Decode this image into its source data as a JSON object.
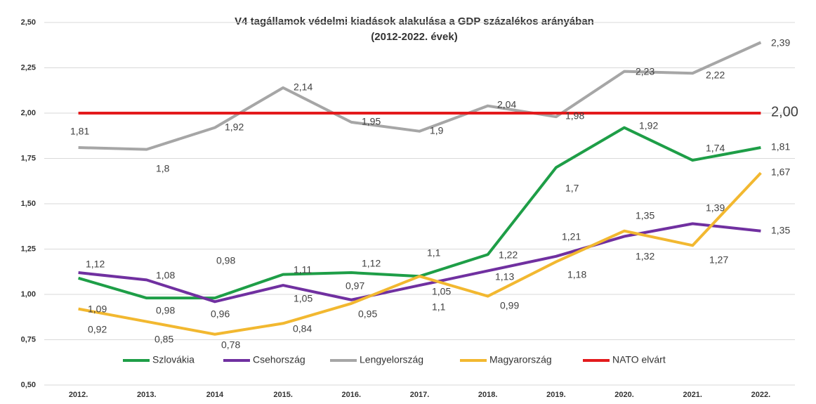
{
  "chart_data": {
    "type": "line",
    "title": "V4 tagállamok védelmi kiadások alakulása a GDP százalékos arányában",
    "subtitle": "(2012-2022. évek)",
    "categories": [
      "2012.",
      "2013.",
      "2014",
      "2015.",
      "2016.",
      "2017.",
      "2018.",
      "2019.",
      "2020.",
      "2021.",
      "2022."
    ],
    "ylim": [
      0.5,
      2.5
    ],
    "yticks": [
      {
        "value": 0.5,
        "label": "0,50"
      },
      {
        "value": 0.75,
        "label": "0,75"
      },
      {
        "value": 1,
        "label": "1,00"
      },
      {
        "value": 1.25,
        "label": "1,25"
      },
      {
        "value": 1.5,
        "label": "1,50"
      },
      {
        "value": 1.75,
        "label": "1,75"
      },
      {
        "value": 2,
        "label": "2,00"
      },
      {
        "value": 2.25,
        "label": "2,25"
      },
      {
        "value": 2.5,
        "label": "2,50"
      }
    ],
    "grid": true,
    "legend": "bottom",
    "series": [
      {
        "name": "Szlovákia",
        "color": "#1e9e47",
        "label_color": "#1e9e47",
        "values": [
          1.09,
          0.98,
          0.98,
          1.11,
          1.12,
          1.1,
          1.22,
          1.7,
          1.92,
          1.74,
          1.81
        ],
        "value_labels": [
          "1,09",
          "0,98",
          "0,98",
          "1,11",
          "1,12",
          "1,1",
          "1,22",
          "1,7",
          "1,92",
          "1,74",
          "1,81"
        ]
      },
      {
        "name": "Csehország",
        "color": "#7030a0",
        "label_color": "#7030a0",
        "values": [
          1.12,
          1.08,
          0.96,
          1.05,
          0.97,
          1.05,
          1.13,
          1.21,
          1.32,
          1.39,
          1.35
        ],
        "value_labels": [
          "1,12",
          "1,08",
          "0,96",
          "1,05",
          "0,97",
          "1,05",
          "1,13",
          "1,21",
          "1,32",
          "1,39",
          "1,35"
        ]
      },
      {
        "name": "Lengyelország",
        "color": "#a6a6a6",
        "label_color": "#404040",
        "values": [
          1.81,
          1.8,
          1.92,
          2.14,
          1.95,
          1.9,
          2.04,
          1.98,
          2.23,
          2.22,
          2.39
        ],
        "value_labels": [
          "1,81",
          "1,8",
          "1,92",
          "2,14",
          "1,95",
          "1,9",
          "2,04",
          "1,98",
          "2,23",
          "2,22",
          "2,39"
        ]
      },
      {
        "name": "Magyarország",
        "color": "#f2b830",
        "label_color": "#8a8a1c",
        "values": [
          0.92,
          0.85,
          0.78,
          0.84,
          0.95,
          1.1,
          0.99,
          1.18,
          1.35,
          1.27,
          1.67
        ],
        "value_labels": [
          "0,92",
          "0,85",
          "0,78",
          "0,84",
          "0,95",
          "1,1",
          "0,99",
          "1,18",
          "1,35",
          "1,27",
          "1,67"
        ]
      },
      {
        "name": "NATO elvárt",
        "color": "#e31a1c",
        "label_color": "#e31a1c",
        "values": [
          2,
          2,
          2,
          2,
          2,
          2,
          2,
          2,
          2,
          2,
          2
        ],
        "value_labels": [
          null,
          null,
          null,
          null,
          null,
          null,
          null,
          null,
          null,
          null,
          "2,00"
        ]
      }
    ]
  }
}
